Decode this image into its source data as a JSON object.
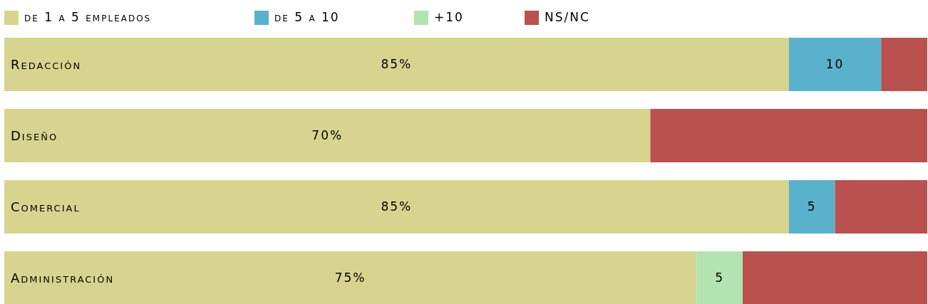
{
  "chart_data": {
    "type": "bar",
    "orientation": "horizontal",
    "stacked": true,
    "categories": [
      "Redacción",
      "Diseño",
      "Comercial",
      "Administración"
    ],
    "xlim": [
      0,
      100
    ],
    "legend": "top left",
    "series": [
      {
        "name": "de 1 a 5 empleados",
        "color": "#d7d48f",
        "values": [
          85,
          70,
          85,
          75
        ],
        "value_labels": [
          "85%",
          "70%",
          "85%",
          "75%"
        ]
      },
      {
        "name": "de 5 a 10",
        "color": "#5ab1cc",
        "values": [
          10,
          0,
          5,
          0
        ],
        "value_labels": [
          "10",
          null,
          "5",
          null
        ]
      },
      {
        "name": "+10",
        "color": "#b3e3b0",
        "values": [
          0,
          0,
          0,
          5
        ],
        "value_labels": [
          null,
          null,
          null,
          "5"
        ]
      },
      {
        "name": "NS/NC",
        "color": "#b8514f",
        "values": [
          5,
          30,
          10,
          20
        ],
        "value_labels": [
          null,
          null,
          null,
          null
        ]
      }
    ]
  }
}
